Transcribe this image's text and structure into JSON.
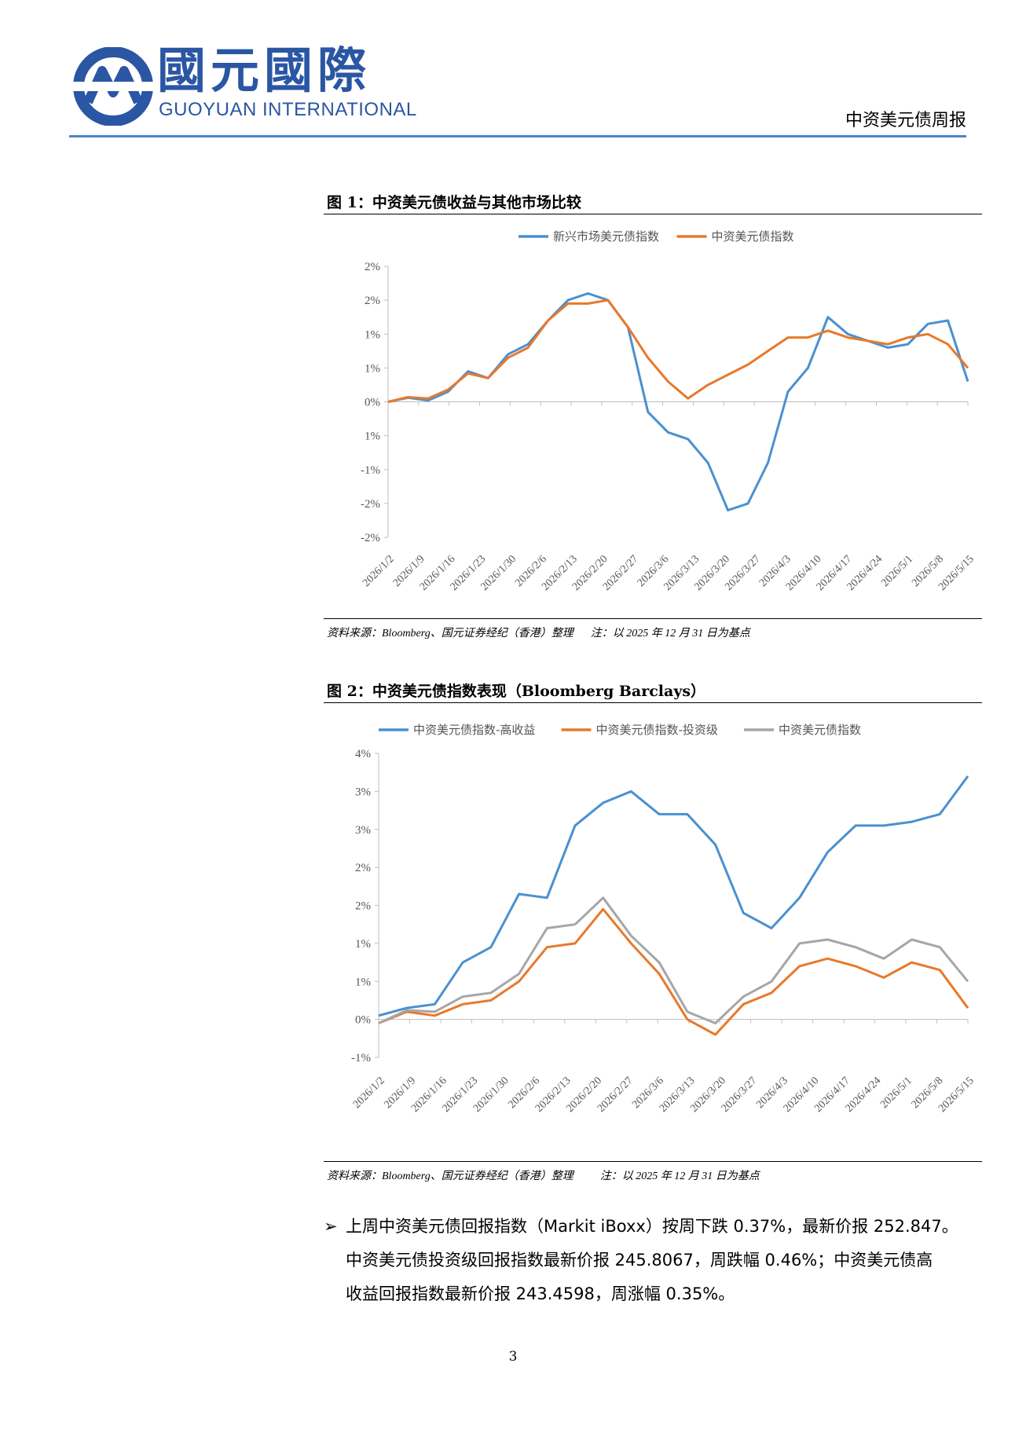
{
  "header": {
    "logo_cn": "國元國際",
    "logo_en": "GUOYUAN INTERNATIONAL",
    "report_name": "中资美元债周报"
  },
  "figure1": {
    "title": "图 1：中资美元债收益与其他市场比较",
    "source": "资料来源：Bloomberg、国元证券经纪（香港）整理",
    "note": "注：以 2025 年 12 月 31 日为基点",
    "chart_data": {
      "type": "line",
      "yticks": [
        "2%",
        "2%",
        "1%",
        "1%",
        "0%",
        "1%",
        "-1%",
        "-2%",
        "-2%"
      ],
      "ylim": [
        -2.0,
        2.0
      ],
      "xticks": [
        "2026/1/2",
        "2026/1/9",
        "2026/1/16",
        "2026/1/23",
        "2026/1/30",
        "2026/2/6",
        "2026/2/13",
        "2026/2/20",
        "2026/2/27",
        "2026/3/6",
        "2026/3/13",
        "2026/3/20",
        "2026/3/27",
        "2026/4/3",
        "2026/4/10",
        "2026/4/17",
        "2026/4/24",
        "2026/5/1",
        "2026/5/8",
        "2026/5/15"
      ],
      "series": [
        {
          "name": "新兴市场美元债指数",
          "color": "#4a90d0",
          "values": [
            0,
            0.06,
            0.02,
            0.15,
            0.45,
            0.35,
            0.7,
            0.85,
            1.2,
            1.5,
            1.6,
            1.5,
            1.1,
            -0.15,
            -0.45,
            -0.55,
            -0.9,
            -1.6,
            -1.5,
            -0.9,
            0.15,
            0.5,
            1.25,
            1.0,
            0.9,
            0.8,
            0.85,
            1.15,
            1.2,
            0.3
          ]
        },
        {
          "name": "中资美元债指数",
          "color": "#e8792b",
          "values": [
            0,
            0.07,
            0.05,
            0.18,
            0.42,
            0.35,
            0.65,
            0.8,
            1.2,
            1.45,
            1.45,
            1.5,
            1.1,
            0.65,
            0.3,
            0.05,
            0.25,
            0.4,
            0.55,
            0.75,
            0.95,
            0.95,
            1.05,
            0.95,
            0.9,
            0.85,
            0.95,
            1.0,
            0.85,
            0.5
          ]
        }
      ]
    }
  },
  "figure2": {
    "title": "图 2：中资美元债指数表现（Bloomberg Barclays）",
    "source": "资料来源：Bloomberg、国元证券经纪（香港）整理",
    "note": "注：以 2025 年 12 月 31 日为基点",
    "chart_data": {
      "type": "line",
      "yticks": [
        "4%",
        "3%",
        "3%",
        "2%",
        "2%",
        "1%",
        "1%",
        "0%",
        "-1%"
      ],
      "ylim": [
        -0.5,
        3.5
      ],
      "xticks": [
        "2026/1/2",
        "2026/1/9",
        "2026/1/16",
        "2026/1/23",
        "2026/1/30",
        "2026/2/6",
        "2026/2/13",
        "2026/2/20",
        "2026/2/27",
        "2026/3/6",
        "2026/3/13",
        "2026/3/20",
        "2026/3/27",
        "2026/4/3",
        "2026/4/10",
        "2026/4/17",
        "2026/4/24",
        "2026/5/1",
        "2026/5/8",
        "2026/5/15"
      ],
      "series": [
        {
          "name": "中资美元债指数-高收益",
          "color": "#4a90d0",
          "values": [
            0.05,
            0.15,
            0.2,
            0.75,
            0.95,
            1.65,
            1.6,
            2.55,
            2.85,
            3.0,
            2.7,
            2.7,
            2.3,
            1.4,
            1.2,
            1.6,
            2.2,
            2.55,
            2.55,
            2.6,
            2.7,
            3.2
          ]
        },
        {
          "name": "中资美元债指数-投资级",
          "color": "#e8792b",
          "values": [
            -0.05,
            0.1,
            0.05,
            0.2,
            0.25,
            0.5,
            0.95,
            1.0,
            1.45,
            1.0,
            0.6,
            0.0,
            -0.2,
            0.2,
            0.35,
            0.7,
            0.8,
            0.7,
            0.55,
            0.75,
            0.65,
            0.15
          ]
        },
        {
          "name": "中资美元债指数",
          "color": "#a6a6a6",
          "values": [
            -0.05,
            0.12,
            0.1,
            0.3,
            0.35,
            0.6,
            1.2,
            1.25,
            1.6,
            1.1,
            0.75,
            0.1,
            -0.05,
            0.3,
            0.5,
            1.0,
            1.05,
            0.95,
            0.8,
            1.05,
            0.95,
            0.5
          ]
        }
      ]
    }
  },
  "paragraph": {
    "bullet": "➢",
    "line1": "上周中资美元债回报指数（Markit iBoxx）按周下跌 0.37%，最新价报 252.847。",
    "line2": "中资美元债投资级回报指数最新价报 245.8067，周跌幅 0.46%；中资美元债高",
    "line3": "收益回报指数最新价报 243.4598，周涨幅 0.35%。"
  },
  "page_number": "3",
  "colors": {
    "brand": "#2a56a3",
    "rule": "#4a86c8"
  }
}
